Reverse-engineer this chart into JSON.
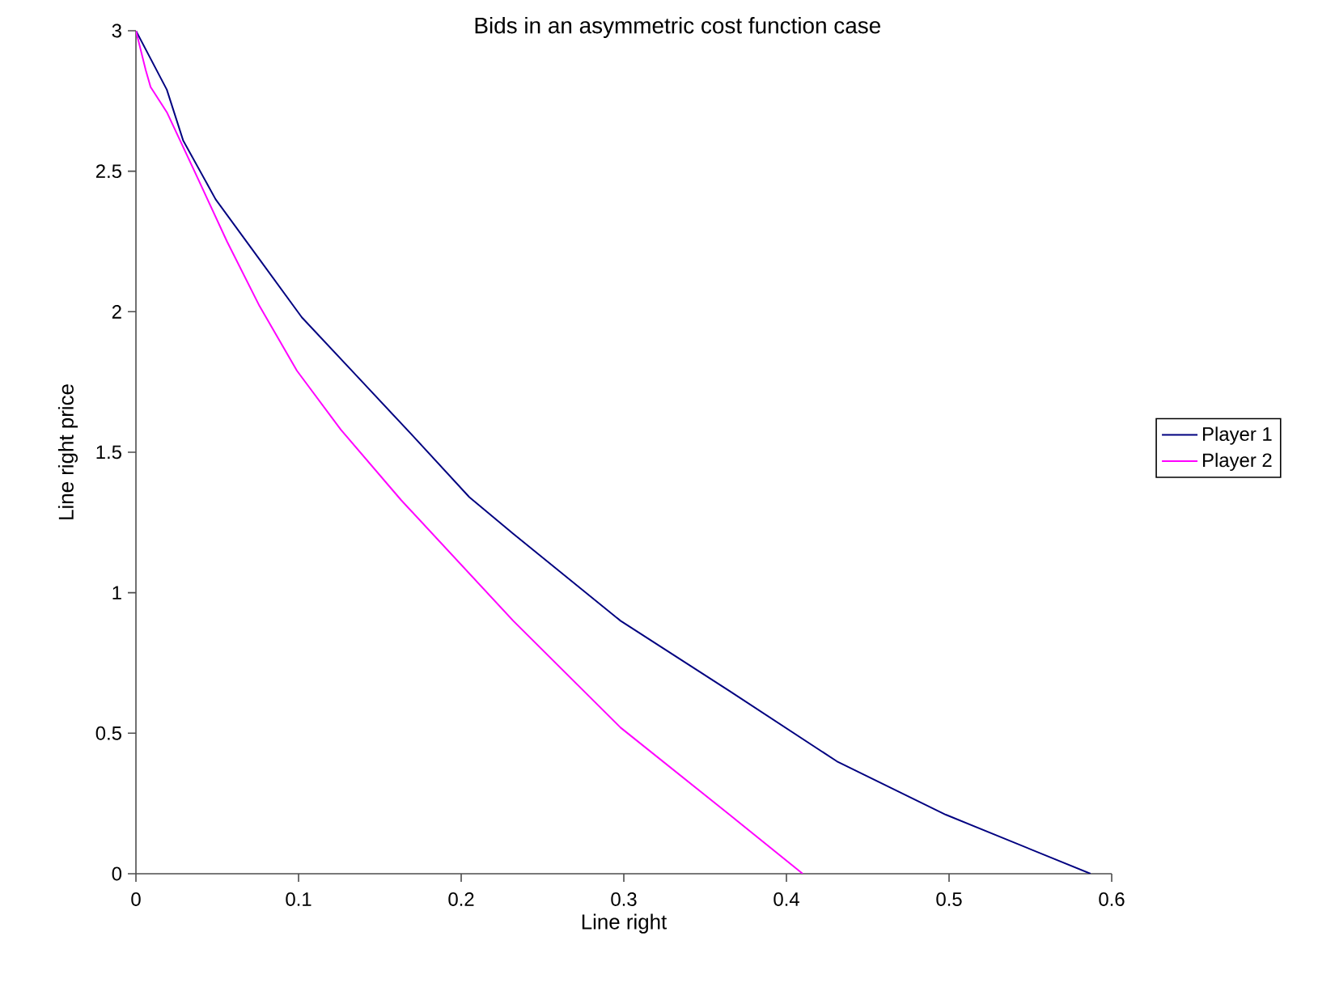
{
  "chart_data": {
    "type": "line",
    "title": "Bids in an asymmetric cost function case",
    "xlabel": "Line right",
    "ylabel": "Line right price",
    "xlim": [
      0,
      0.6
    ],
    "ylim": [
      0,
      3
    ],
    "xticks": [
      0,
      0.1,
      0.2,
      0.3,
      0.4,
      0.5,
      0.6
    ],
    "yticks": [
      0,
      0.5,
      1,
      1.5,
      2,
      2.5,
      3
    ],
    "grid": false,
    "legend": "right",
    "marker": "none",
    "line_style": "solid",
    "series": [
      {
        "name": "Player 1",
        "color": "#000080",
        "x": [
          0,
          0.019,
          0.029,
          0.049,
          0.073,
          0.102,
          0.136,
          0.17,
          0.205,
          0.232,
          0.298,
          0.365,
          0.431,
          0.498,
          0.587
        ],
        "values": [
          3,
          2.79,
          2.61,
          2.4,
          2.21,
          1.98,
          1.77,
          1.56,
          1.34,
          1.21,
          0.9,
          0.65,
          0.4,
          0.21,
          0
        ]
      },
      {
        "name": "Player 2",
        "color": "#ff00ff",
        "x": [
          0,
          0.006,
          0.009,
          0.019,
          0.036,
          0.056,
          0.076,
          0.099,
          0.126,
          0.163,
          0.232,
          0.298,
          0.365,
          0.41
        ],
        "values": [
          3,
          2.86,
          2.8,
          2.71,
          2.5,
          2.25,
          2.02,
          1.79,
          1.58,
          1.33,
          0.9,
          0.52,
          0.21,
          0
        ]
      }
    ]
  }
}
